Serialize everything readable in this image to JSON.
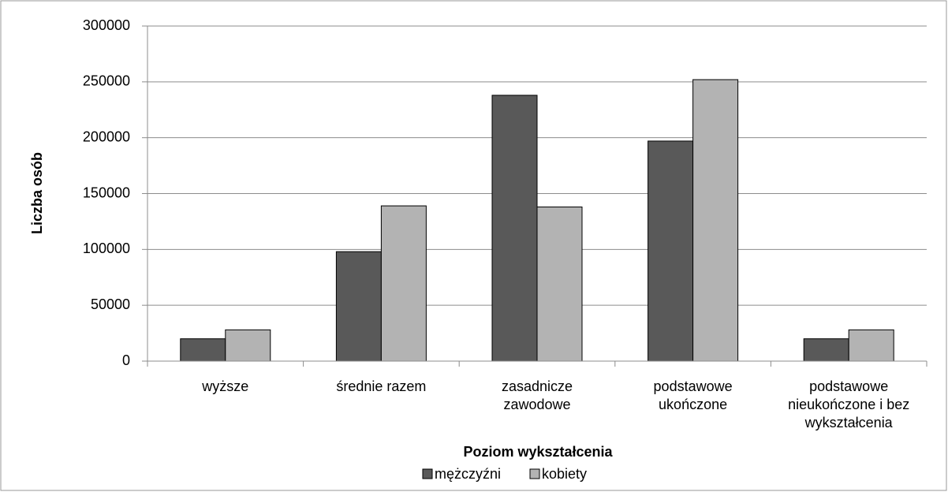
{
  "chart_data": {
    "type": "bar",
    "xlabel": "Poziom wykształcenia",
    "ylabel": "Liczba osób",
    "categories": [
      "wyższe",
      "średnie razem",
      "zasadnicze zawodowe",
      "podstawowe ukończone",
      "podstawowe nieukończone i bez wykształcenia"
    ],
    "series": [
      {
        "name": "mężczyźni",
        "color": "#595959",
        "values": [
          20000,
          98000,
          238000,
          197000,
          20000
        ]
      },
      {
        "name": "kobiety",
        "color": "#b3b3b3",
        "values": [
          28000,
          139000,
          138000,
          252000,
          28000
        ]
      }
    ],
    "ylim": [
      0,
      300000
    ],
    "yticks": [
      0,
      50000,
      100000,
      150000,
      200000,
      250000,
      300000
    ],
    "grid": true,
    "legend": "bottom"
  }
}
